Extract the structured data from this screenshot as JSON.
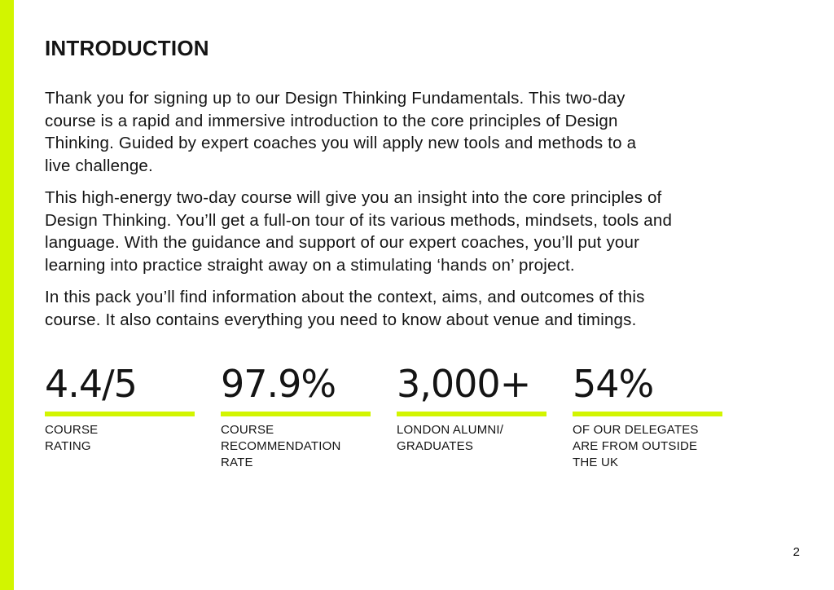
{
  "colors": {
    "accent": "#d2f500",
    "text": "#141414",
    "background": "#ffffff"
  },
  "page": {
    "heading": "INTRODUCTION",
    "paragraphs": [
      "Thank you for signing up to our Design Thinking Fundamentals. This two-day\ncourse is a rapid and immersive introduction to the core principles of Design\nThinking. Guided by expert coaches you will apply new tools and methods to a\nlive challenge.",
      "This high-energy two-day course will give you an insight into the core principles of\nDesign Thinking. You’ll get a full-on tour of its various methods, mindsets, tools and\nlanguage. With the guidance and support of our expert coaches, you’ll put your\nlearning into practice straight away on a stimulating ‘hands on’ project.",
      "In this pack you’ll find information about the context, aims, and outcomes of this\ncourse. It also contains everything you need to know about venue and timings."
    ],
    "stats": [
      {
        "value": "4.4/5",
        "label": "COURSE\nRATING"
      },
      {
        "value": "97.9%",
        "label": "COURSE\nRECOMMENDATION\nRATE"
      },
      {
        "value": "3,000+",
        "label": "LONDON ALUMNI/\nGRADUATES"
      },
      {
        "value": "54%",
        "label": "OF OUR DELEGATES\nARE FROM OUTSIDE\nTHE UK"
      }
    ],
    "page_number": "2"
  }
}
